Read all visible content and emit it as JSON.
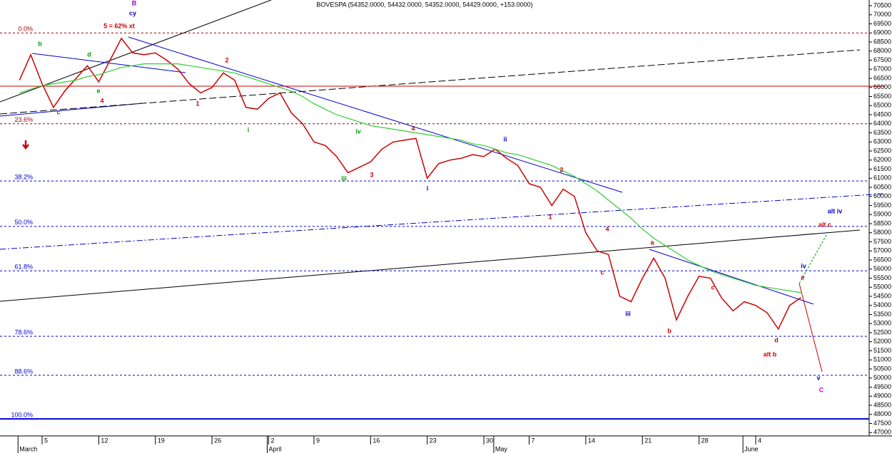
{
  "chart_data": {
    "type": "line",
    "title": "BOVESPA (54352.0000, 54432.0000, 54352.0000, 54429.0000, +153.0000)",
    "categories": [
      null,
      null,
      "5",
      null,
      null,
      null,
      null,
      "12",
      null,
      null,
      null,
      null,
      "19",
      null,
      null,
      null,
      null,
      "26",
      null,
      null,
      null,
      null,
      "2",
      null,
      null,
      null,
      "9",
      null,
      null,
      null,
      null,
      "16",
      null,
      null,
      null,
      null,
      "23",
      null,
      null,
      null,
      null,
      "30",
      null,
      null,
      null,
      "7",
      null,
      null,
      null,
      null,
      "14",
      null,
      null,
      null,
      null,
      "21",
      null,
      null,
      null,
      null,
      "28",
      null,
      null,
      null,
      null,
      "4",
      null,
      null,
      null,
      null
    ],
    "month_labels": [
      "March",
      null,
      null,
      null,
      null,
      null,
      null,
      null,
      null,
      null,
      null,
      null,
      null,
      null,
      null,
      null,
      null,
      null,
      null,
      null,
      null,
      null,
      "April",
      null,
      null,
      null,
      null,
      null,
      null,
      null,
      null,
      null,
      null,
      null,
      null,
      null,
      null,
      null,
      null,
      null,
      null,
      null,
      "May",
      null,
      null,
      null,
      null,
      null,
      null,
      null,
      null,
      null,
      null,
      null,
      null,
      null,
      null,
      null,
      null,
      null,
      null,
      null,
      null,
      null,
      "June",
      null,
      null,
      null,
      null,
      null
    ],
    "series": [
      {
        "color": "#cc0000",
        "values": [
          66400,
          67800,
          66200,
          64900,
          65800,
          66500,
          67200,
          66300,
          67500,
          68700,
          67900,
          67800,
          67900,
          67500,
          67000,
          66200,
          65700,
          66000,
          66800,
          66400,
          64900,
          64800,
          65400,
          65700,
          64600,
          64000,
          63000,
          62800,
          62200,
          61300,
          61600,
          61900,
          62600,
          63000,
          63100,
          63200,
          61000,
          61800,
          62000,
          62100,
          62300,
          62200,
          62600,
          62100,
          61700,
          60700,
          60500,
          59500,
          60400,
          60000,
          58000,
          57000,
          56800,
          54500,
          54200,
          55500,
          56600,
          55500,
          53200,
          54500,
          55600,
          55500,
          54400,
          53700,
          54200,
          54000,
          53600,
          52700,
          54000,
          54429
        ]
      },
      {
        "color": "#33cc33",
        "values": [
          65700,
          65900,
          66100,
          66200,
          66300,
          66400,
          66600,
          66700,
          66900,
          67100,
          67200,
          67300,
          67300,
          67300,
          67300,
          67200,
          67100,
          67000,
          66900,
          66800,
          66600,
          66400,
          66200,
          66000,
          65800,
          65500,
          65100,
          64800,
          64500,
          64300,
          64100,
          63900,
          63800,
          63700,
          63600,
          63500,
          63400,
          63300,
          63200,
          63100,
          62900,
          62800,
          62600,
          62400,
          62300,
          62100,
          61900,
          61700,
          61400,
          61100,
          60700,
          60300,
          59800,
          59300,
          58800,
          58200,
          57700,
          57300,
          56900,
          56500,
          56200,
          55900,
          55700,
          55500,
          55300,
          55100,
          55000,
          54900,
          54800,
          54700
        ]
      }
    ],
    "ylim": [
      47000,
      70500
    ],
    "yticks": [
      47000,
      47500,
      48000,
      48500,
      49000,
      49500,
      50000,
      50500,
      51000,
      51500,
      52000,
      52500,
      53000,
      53500,
      54000,
      54500,
      55000,
      55500,
      56000,
      56500,
      57000,
      57500,
      58000,
      58500,
      59000,
      59500,
      60000,
      60500,
      61000,
      61500,
      62000,
      62500,
      63000,
      63500,
      64000,
      64500,
      65000,
      65500,
      66000,
      66500,
      67000,
      67500,
      68000,
      68500,
      69000,
      69500,
      70000,
      70500
    ],
    "levels": [
      {
        "label": "0.0%",
        "value": 69000,
        "color": "#990000"
      },
      {
        "label": "23.6%",
        "value": 64000,
        "color": "#990000"
      },
      {
        "label": "38.2%",
        "value": 60850,
        "color": "#0000cc"
      },
      {
        "label": "50.0%",
        "value": 58350,
        "color": "#0000cc"
      },
      {
        "label": "61.8%",
        "value": 55900,
        "color": "#0000cc"
      },
      {
        "label": "78.6%",
        "value": 52300,
        "color": "#0000cc"
      },
      {
        "label": "88.6%",
        "value": 50150,
        "color": "#0000cc"
      },
      {
        "label": "100.0%",
        "value": 47750,
        "color": "#0000cc"
      }
    ],
    "annotations": [
      "B",
      "cy",
      "5 = 62% xt",
      "b",
      "d",
      "c",
      "e",
      "4",
      "2",
      "1",
      "i",
      "iv",
      "iii",
      "3",
      "4",
      "i",
      "ii",
      "2",
      "1",
      "4",
      "a",
      "c",
      "iii",
      "b",
      "c",
      "d",
      "alt b",
      "iv",
      "e",
      "alt iv",
      "alt c",
      "v",
      "C"
    ]
  }
}
